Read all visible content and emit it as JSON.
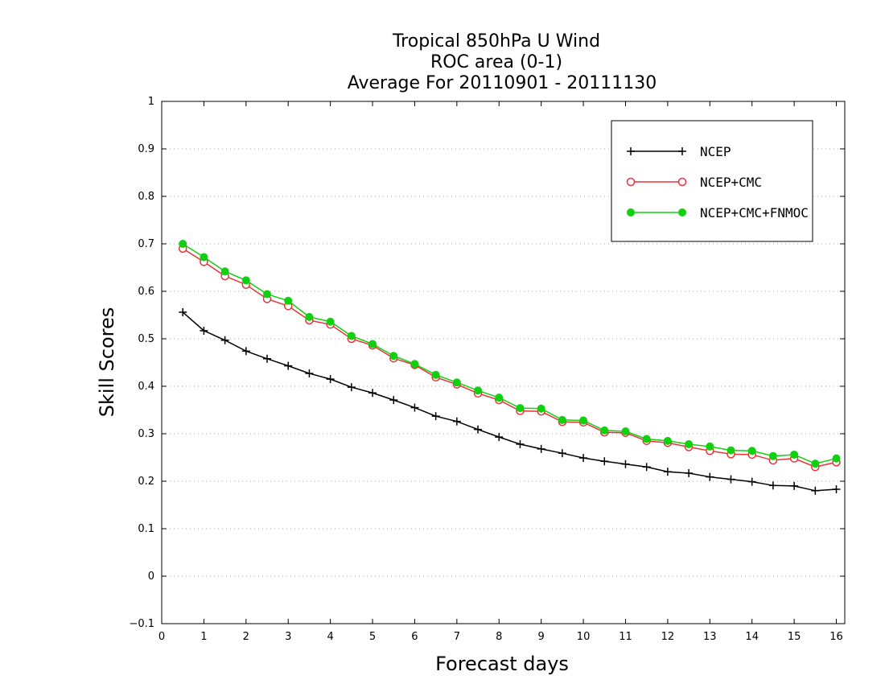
{
  "chart_data": {
    "type": "line",
    "title": [
      "Tropical 850hPa U Wind",
      "ROC area (0-1)",
      "Average For 20110901 - 20111130"
    ],
    "xlabel": "Forecast days",
    "ylabel": "Skill Scores",
    "xlim": [
      0,
      16.2
    ],
    "ylim": [
      -0.1,
      1
    ],
    "xticks": [
      "0",
      "1",
      "2",
      "3",
      "4",
      "5",
      "6",
      "7",
      "8",
      "9",
      "10",
      "11",
      "12",
      "13",
      "14",
      "15",
      "16"
    ],
    "yticks": [
      "−0.1",
      "0",
      "0.1",
      "0.2",
      "0.3",
      "0.4",
      "0.5",
      "0.6",
      "0.7",
      "0.8",
      "0.9",
      "1"
    ],
    "grid": "horizontal dotted",
    "legend_position": "top-right",
    "x": [
      0.5,
      1,
      1.5,
      2,
      2.5,
      3,
      3.5,
      4,
      4.5,
      5,
      5.5,
      6,
      6.5,
      7,
      7.5,
      8,
      8.5,
      9,
      9.5,
      10,
      10.5,
      11,
      11.5,
      12,
      12.5,
      13,
      13.5,
      14,
      14.5,
      15,
      15.5,
      16
    ],
    "series": [
      {
        "name": "NCEP",
        "color": "#000000",
        "marker": "plus",
        "values": [
          0.556,
          0.517,
          0.497,
          0.474,
          0.458,
          0.443,
          0.427,
          0.415,
          0.398,
          0.386,
          0.371,
          0.355,
          0.337,
          0.326,
          0.309,
          0.293,
          0.278,
          0.268,
          0.259,
          0.249,
          0.242,
          0.236,
          0.23,
          0.22,
          0.217,
          0.209,
          0.204,
          0.199,
          0.191,
          0.19,
          0.18,
          0.183
        ]
      },
      {
        "name": "NCEP+CMC",
        "color": "#e8333a",
        "marker": "open-circle",
        "values": [
          0.69,
          0.662,
          0.632,
          0.614,
          0.584,
          0.569,
          0.539,
          0.53,
          0.5,
          0.486,
          0.459,
          0.445,
          0.419,
          0.404,
          0.385,
          0.371,
          0.348,
          0.347,
          0.325,
          0.324,
          0.303,
          0.302,
          0.285,
          0.281,
          0.272,
          0.264,
          0.257,
          0.256,
          0.244,
          0.248,
          0.23,
          0.24
        ]
      },
      {
        "name": "NCEP+CMC+FNMOC",
        "color": "#10d010",
        "marker": "filled-circle",
        "values": [
          0.7,
          0.672,
          0.642,
          0.623,
          0.594,
          0.58,
          0.546,
          0.536,
          0.506,
          0.489,
          0.464,
          0.447,
          0.424,
          0.408,
          0.391,
          0.376,
          0.354,
          0.353,
          0.329,
          0.328,
          0.307,
          0.305,
          0.289,
          0.285,
          0.278,
          0.273,
          0.265,
          0.264,
          0.253,
          0.256,
          0.237,
          0.248
        ]
      }
    ]
  }
}
